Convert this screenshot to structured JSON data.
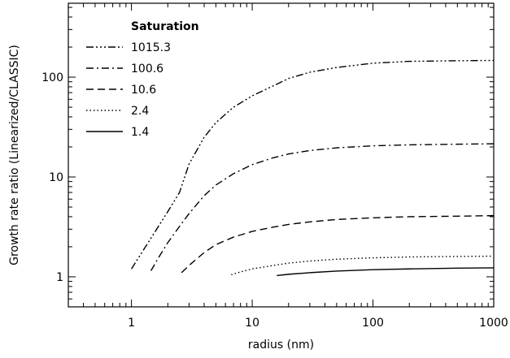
{
  "chart_data": {
    "type": "line",
    "xlabel": "radius (nm)",
    "ylabel": "Growth rate ratio (Linearized/CLASSIC)",
    "x_scale": "log",
    "y_scale": "log",
    "xlim": [
      0.3,
      1000
    ],
    "ylim": [
      0.5,
      550
    ],
    "x_ticks": [
      1,
      10,
      100,
      1000
    ],
    "x_tick_labels": [
      "1",
      "10",
      "100",
      "1000"
    ],
    "y_ticks": [
      1,
      10,
      100
    ],
    "y_tick_labels": [
      "1",
      "10",
      "100"
    ],
    "grid": false,
    "legend": {
      "title": "Saturation",
      "placement": "top-left"
    },
    "series": [
      {
        "name": "1015.3",
        "line_style": "dash-dot-dot-dot",
        "points": [
          [
            1.0,
            1.2
          ],
          [
            1.2,
            1.7
          ],
          [
            1.5,
            2.6
          ],
          [
            2.0,
            4.5
          ],
          [
            2.5,
            7.0
          ],
          [
            3.0,
            13.5
          ],
          [
            4.0,
            25
          ],
          [
            5.0,
            35
          ],
          [
            7.0,
            50
          ],
          [
            10,
            65
          ],
          [
            15,
            82
          ],
          [
            20,
            97
          ],
          [
            30,
            112
          ],
          [
            50,
            125
          ],
          [
            100,
            138
          ],
          [
            200,
            144
          ],
          [
            500,
            146
          ],
          [
            1000,
            147
          ]
        ]
      },
      {
        "name": "100.6",
        "line_style": "dash-dot",
        "points": [
          [
            1.45,
            1.15
          ],
          [
            1.7,
            1.6
          ],
          [
            2.0,
            2.2
          ],
          [
            2.5,
            3.2
          ],
          [
            3.0,
            4.3
          ],
          [
            4.0,
            6.5
          ],
          [
            5.0,
            8.3
          ],
          [
            7.0,
            10.8
          ],
          [
            10,
            13.3
          ],
          [
            15,
            15.6
          ],
          [
            20,
            17.0
          ],
          [
            30,
            18.4
          ],
          [
            50,
            19.6
          ],
          [
            100,
            20.5
          ],
          [
            200,
            21.0
          ],
          [
            500,
            21.3
          ],
          [
            1000,
            21.5
          ]
        ]
      },
      {
        "name": "10.6",
        "line_style": "dash",
        "points": [
          [
            2.6,
            1.1
          ],
          [
            3.0,
            1.3
          ],
          [
            4.0,
            1.75
          ],
          [
            5.0,
            2.1
          ],
          [
            7.0,
            2.5
          ],
          [
            10,
            2.85
          ],
          [
            15,
            3.15
          ],
          [
            20,
            3.35
          ],
          [
            30,
            3.55
          ],
          [
            50,
            3.75
          ],
          [
            100,
            3.9
          ],
          [
            200,
            4.0
          ],
          [
            500,
            4.05
          ],
          [
            1000,
            4.1
          ]
        ]
      },
      {
        "name": "2.4",
        "line_style": "dot",
        "points": [
          [
            6.7,
            1.05
          ],
          [
            8.0,
            1.12
          ],
          [
            10,
            1.2
          ],
          [
            15,
            1.3
          ],
          [
            20,
            1.37
          ],
          [
            30,
            1.44
          ],
          [
            50,
            1.5
          ],
          [
            100,
            1.55
          ],
          [
            200,
            1.58
          ],
          [
            500,
            1.6
          ],
          [
            1000,
            1.61
          ]
        ]
      },
      {
        "name": "1.4",
        "line_style": "solid",
        "points": [
          [
            16,
            1.03
          ],
          [
            20,
            1.06
          ],
          [
            30,
            1.1
          ],
          [
            50,
            1.14
          ],
          [
            100,
            1.18
          ],
          [
            200,
            1.2
          ],
          [
            500,
            1.22
          ],
          [
            1000,
            1.23
          ]
        ]
      }
    ]
  }
}
